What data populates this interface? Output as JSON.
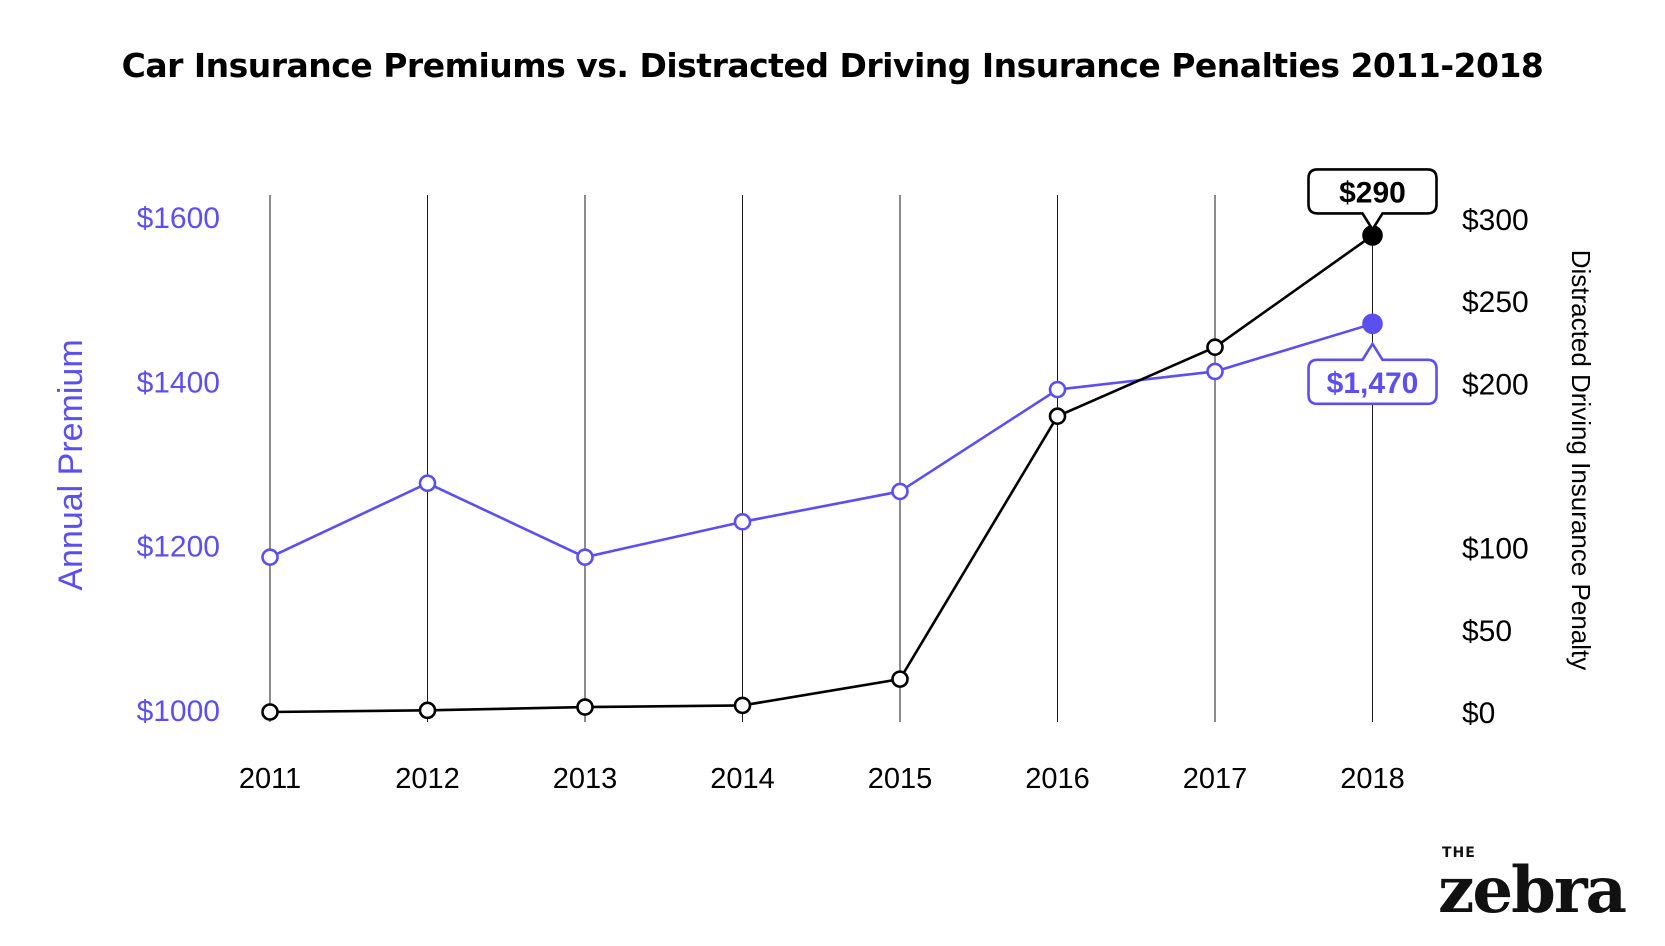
{
  "chart_data": {
    "type": "line",
    "title": "Car Insurance Premiums vs. Distracted Driving Insurance Penalties 2011-2018",
    "x": [
      "2011",
      "2012",
      "2013",
      "2014",
      "2015",
      "2016",
      "2017",
      "2018"
    ],
    "series": [
      {
        "key": "premium",
        "axis": "left",
        "color": "#5b4ff2",
        "values": [
          1186,
          1276,
          1186,
          1229,
          1266,
          1390,
          1412,
          1470
        ]
      },
      {
        "key": "penalty",
        "axis": "right",
        "color": "#000000",
        "values": [
          0,
          1,
          3,
          4,
          20,
          180,
          222,
          290
        ]
      }
    ],
    "left_axis": {
      "label": "Annual Premium",
      "range": [
        1000,
        1600
      ],
      "ticks": [
        1000,
        1200,
        1400,
        1600
      ],
      "tick_labels": [
        "$1000",
        "$1200",
        "$1400",
        "$1600"
      ],
      "color": "#5b4ff2"
    },
    "right_axis": {
      "label": "Distracted Driving Insurance Penalty",
      "range": [
        0,
        300
      ],
      "ticks": [
        0,
        50,
        100,
        200,
        250,
        300
      ],
      "tick_labels": [
        "$0",
        "$50",
        "$100",
        "$200",
        "$250",
        "$300"
      ],
      "color": "#000000"
    },
    "callouts": [
      {
        "series": "penalty",
        "x": "2018",
        "text": "$290",
        "placement": "above"
      },
      {
        "series": "premium",
        "x": "2018",
        "text": "$1,470",
        "placement": "below"
      }
    ],
    "grid": "vertical lines at each year"
  },
  "brand": {
    "the": "THE",
    "name": "zebra"
  }
}
